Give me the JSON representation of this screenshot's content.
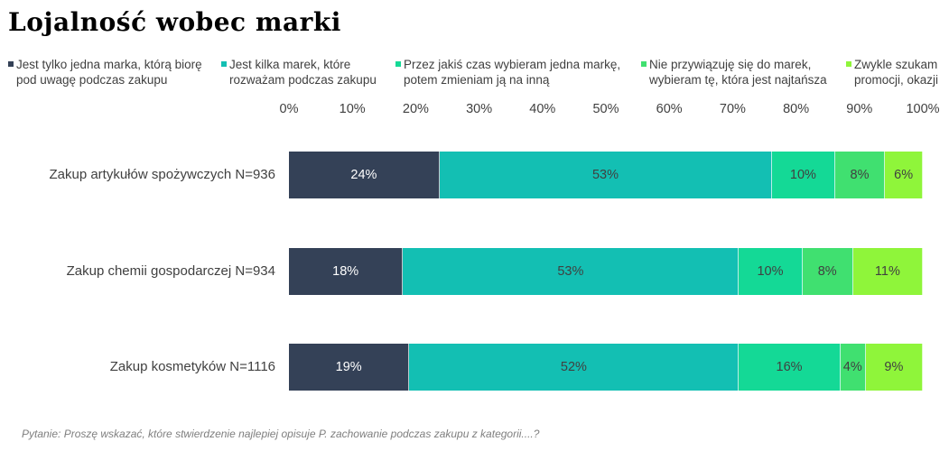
{
  "title": "Lojalność wobec marki",
  "footer": "Pytanie: Proszę wskazać, które stwierdzenie najlepiej opisuje P. zachowanie podczas zakupu z kategorii....?",
  "legend": [
    {
      "line1": "Jest tylko jedna marka, którą biorę",
      "line2": "pod uwagę podczas zakupu",
      "color": "#344157"
    },
    {
      "line1": "Jest kilka marek, które",
      "line2": "rozważam podczas zakupu",
      "color": "#13bfb3"
    },
    {
      "line1": "Przez jakiś czas wybieram jedna markę,",
      "line2": "potem zmieniam ją na inną",
      "color": "#14d996"
    },
    {
      "line1": "Nie przywiązuję się do marek,",
      "line2": "wybieram tę, która jest najtańsza",
      "color": "#40e070"
    },
    {
      "line1": "Zwykle szukam",
      "line2": "promocji, okazji",
      "color": "#8ff53a"
    }
  ],
  "chart_data": {
    "type": "bar",
    "orientation": "horizontal",
    "stacked": true,
    "percent_stacked": true,
    "title": "Lojalność wobec marki",
    "xlim": [
      0,
      100
    ],
    "x_ticks": [
      "0%",
      "10%",
      "20%",
      "30%",
      "40%",
      "50%",
      "60%",
      "70%",
      "80%",
      "90%",
      "100%"
    ],
    "categories": [
      "Zakup artykułów spożywczych N=936",
      "Zakup chemii gospodarczej N=934",
      "Zakup kosmetyków N=1116"
    ],
    "series": [
      {
        "name": "Jest tylko jedna marka, którą biorę pod uwagę podczas zakupu",
        "color": "#344157",
        "text_color": "#ffffff",
        "values": [
          24,
          18,
          19
        ]
      },
      {
        "name": "Jest kilka marek, które rozważam podczas zakupu",
        "color": "#13bfb3",
        "text_color": "#404040",
        "values": [
          53,
          53,
          52
        ]
      },
      {
        "name": "Przez jakiś czas wybieram jedna markę, potem zmieniam ją na inną",
        "color": "#14d996",
        "text_color": "#404040",
        "values": [
          10,
          10,
          16
        ]
      },
      {
        "name": "Nie przywiązuję się do marek, wybieram tę, która jest najtańsza",
        "color": "#40e070",
        "text_color": "#404040",
        "values": [
          8,
          8,
          4
        ]
      },
      {
        "name": "Zwykle szukam promocji, okazji",
        "color": "#8ff53a",
        "text_color": "#404040",
        "values": [
          6,
          11,
          9
        ]
      }
    ],
    "labels": [
      [
        "24%",
        "53%",
        "10%",
        "8%",
        "6%"
      ],
      [
        "18%",
        "53%",
        "10%",
        "8%",
        "11%"
      ],
      [
        "19%",
        "52%",
        "16%",
        "4%",
        "9%"
      ]
    ]
  }
}
